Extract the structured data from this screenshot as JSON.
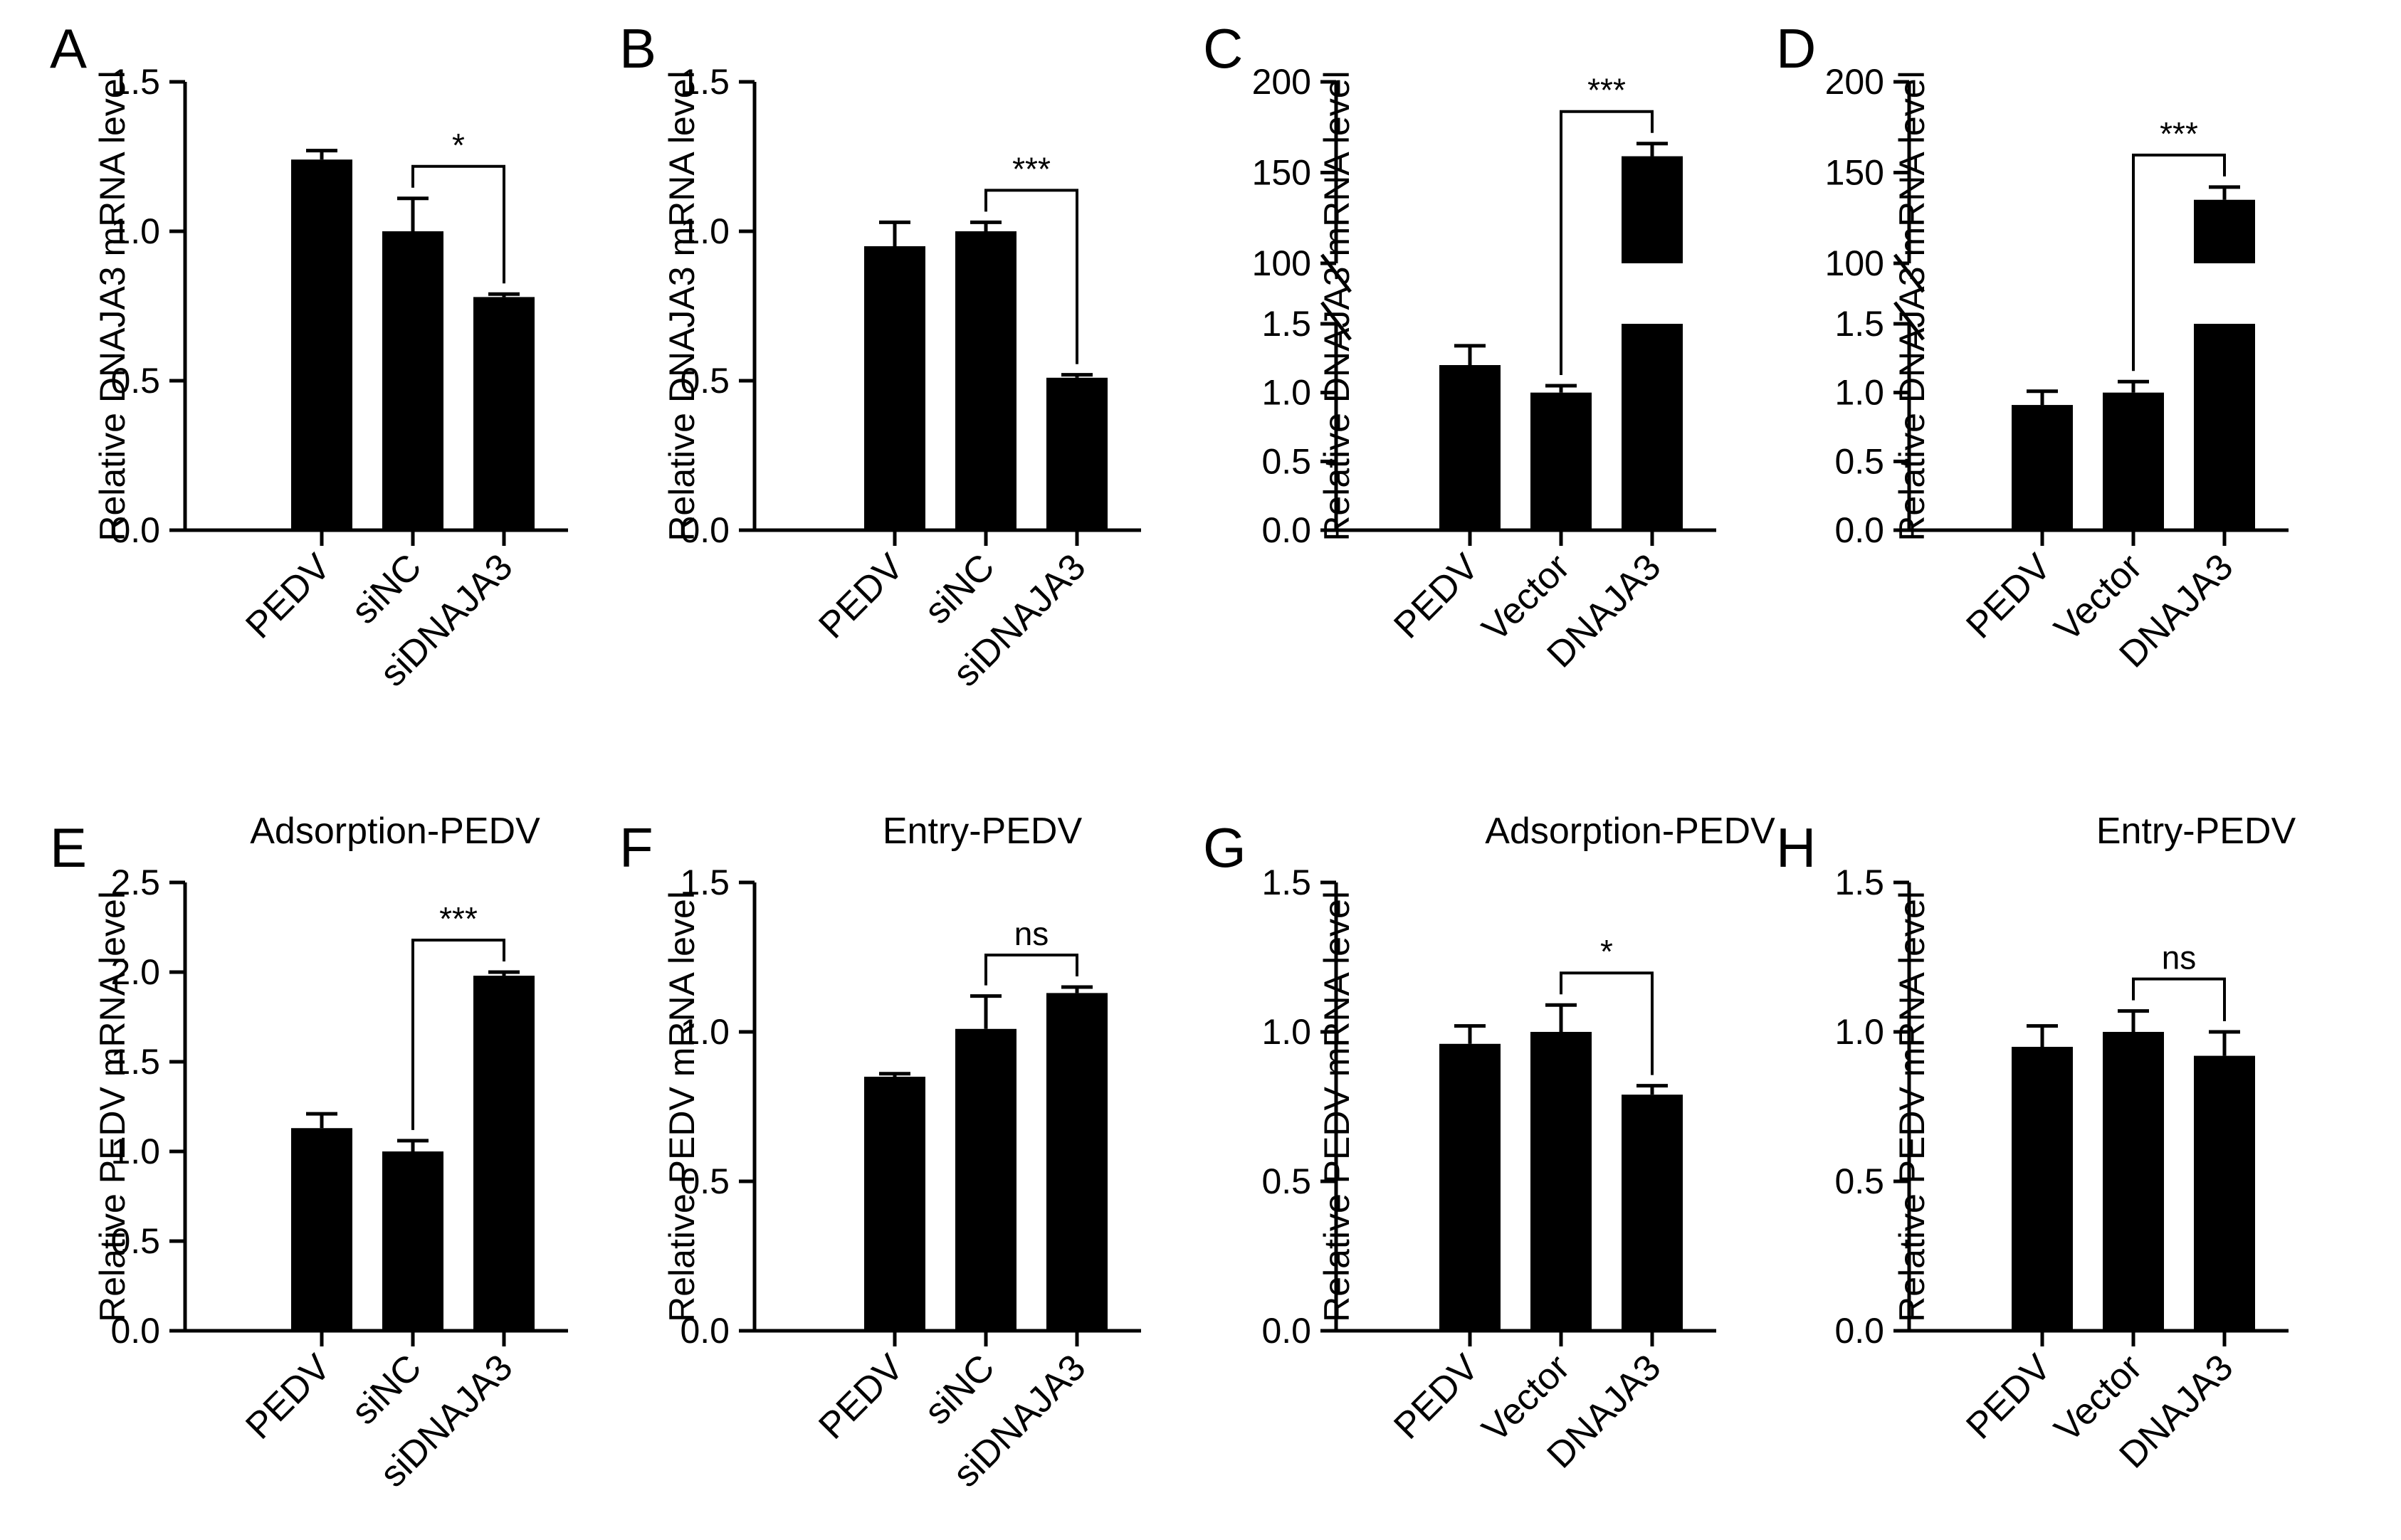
{
  "figure": {
    "panels": [
      {
        "letter": "A"
      },
      {
        "letter": "B"
      },
      {
        "letter": "C"
      },
      {
        "letter": "D"
      },
      {
        "letter": "E"
      },
      {
        "letter": "F"
      },
      {
        "letter": "G"
      },
      {
        "letter": "H"
      }
    ]
  },
  "chart_data": [
    {
      "panel": "A",
      "type": "bar",
      "title": "",
      "xlabel": "",
      "ylabel": "Relative DNAJA3 mRNA level",
      "categories": [
        "PEDV",
        "siNC",
        "siDNAJA3"
      ],
      "values": [
        1.24,
        1.0,
        0.78
      ],
      "errors": [
        0.03,
        0.11,
        0.01
      ],
      "ylim": [
        0,
        1.5
      ],
      "yticks": [
        "0.0",
        "0.5",
        "1.0",
        "1.5"
      ],
      "comparison": {
        "from": 1,
        "to": 2,
        "label": "*"
      }
    },
    {
      "panel": "B",
      "type": "bar",
      "title": "",
      "xlabel": "",
      "ylabel": "Relative DNAJA3 mRNA level",
      "categories": [
        "PEDV",
        "siNC",
        "siDNAJA3"
      ],
      "values": [
        0.95,
        1.0,
        0.51
      ],
      "errors": [
        0.08,
        0.03,
        0.01
      ],
      "ylim": [
        0,
        1.5
      ],
      "yticks": [
        "0.0",
        "0.5",
        "1.0",
        "1.5"
      ],
      "comparison": {
        "from": 1,
        "to": 2,
        "label": "***"
      }
    },
    {
      "panel": "C",
      "type": "bar",
      "title": "",
      "xlabel": "",
      "ylabel": "Relative DNAJA3 mRNA level",
      "categories": [
        "PEDV",
        "Vector",
        "DNAJA3"
      ],
      "values": [
        1.2,
        1.0,
        159
      ],
      "errors": [
        0.14,
        0.05,
        7
      ],
      "broken_axis": {
        "lower": [
          0,
          1.5
        ],
        "upper": [
          100,
          200
        ]
      },
      "yticks_lower": [
        "0.0",
        "0.5",
        "1.0",
        "1.5"
      ],
      "yticks_upper": [
        "100",
        "150",
        "200"
      ],
      "comparison": {
        "from": 1,
        "to": 2,
        "label": "***"
      }
    },
    {
      "panel": "D",
      "type": "bar",
      "title": "",
      "xlabel": "",
      "ylabel": "Relative DNAJA3 mRNA level",
      "categories": [
        "PEDV",
        "Vector",
        "DNAJA3"
      ],
      "values": [
        0.91,
        1.0,
        135
      ],
      "errors": [
        0.1,
        0.08,
        7
      ],
      "broken_axis": {
        "lower": [
          0,
          1.5
        ],
        "upper": [
          100,
          200
        ]
      },
      "yticks_lower": [
        "0.0",
        "0.5",
        "1.0",
        "1.5"
      ],
      "yticks_upper": [
        "100",
        "150",
        "200"
      ],
      "comparison": {
        "from": 1,
        "to": 2,
        "label": "***"
      }
    },
    {
      "panel": "E",
      "type": "bar",
      "title": "Adsorption-PEDV",
      "xlabel": "",
      "ylabel": "Relative PEDV mRNA level",
      "categories": [
        "PEDV",
        "siNC",
        "siDNAJA3"
      ],
      "values": [
        1.13,
        1.0,
        1.98
      ],
      "errors": [
        0.08,
        0.06,
        0.02
      ],
      "ylim": [
        0,
        2.5
      ],
      "yticks": [
        "0.0",
        "0.5",
        "1.0",
        "1.5",
        "2.0",
        "2.5"
      ],
      "comparison": {
        "from": 1,
        "to": 2,
        "label": "***"
      }
    },
    {
      "panel": "F",
      "type": "bar",
      "title": "Entry-PEDV",
      "xlabel": "",
      "ylabel": "Relative PEDV mRNA level",
      "categories": [
        "PEDV",
        "siNC",
        "siDNAJA3"
      ],
      "values": [
        0.85,
        1.01,
        1.13
      ],
      "errors": [
        0.01,
        0.11,
        0.02
      ],
      "ylim": [
        0,
        1.5
      ],
      "yticks": [
        "0.0",
        "0.5",
        "1.0",
        "1.5"
      ],
      "comparison": {
        "from": 1,
        "to": 2,
        "label": "ns"
      }
    },
    {
      "panel": "G",
      "type": "bar",
      "title": "Adsorption-PEDV",
      "xlabel": "",
      "ylabel": "Relative PEDV mRNA level",
      "categories": [
        "PEDV",
        "Vector",
        "DNAJA3"
      ],
      "values": [
        0.96,
        1.0,
        0.79
      ],
      "errors": [
        0.06,
        0.09,
        0.03
      ],
      "ylim": [
        0,
        1.5
      ],
      "yticks": [
        "0.0",
        "0.5",
        "1.0",
        "1.5"
      ],
      "comparison": {
        "from": 1,
        "to": 2,
        "label": "*"
      }
    },
    {
      "panel": "H",
      "type": "bar",
      "title": "Entry-PEDV",
      "xlabel": "",
      "ylabel": "Relative PEDV mRNA level",
      "categories": [
        "PEDV",
        "Vector",
        "DNAJA3"
      ],
      "values": [
        0.95,
        1.0,
        0.92
      ],
      "errors": [
        0.07,
        0.07,
        0.08
      ],
      "ylim": [
        0,
        1.5
      ],
      "yticks": [
        "0.0",
        "0.5",
        "1.0",
        "1.5"
      ],
      "comparison": {
        "from": 1,
        "to": 2,
        "label": "ns"
      }
    }
  ]
}
